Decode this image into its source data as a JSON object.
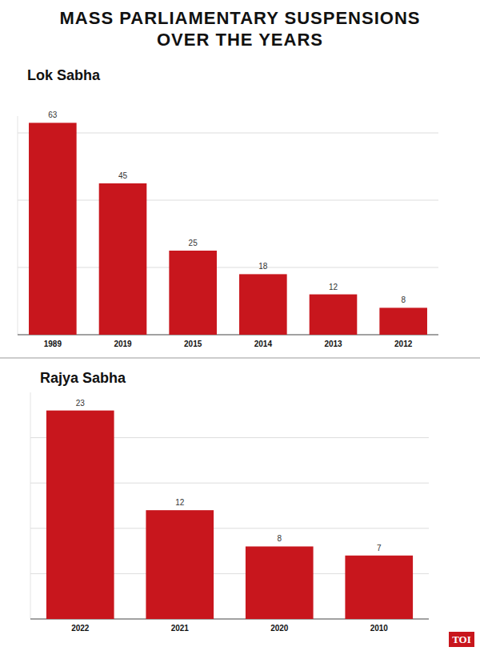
{
  "title": "MASS PARLIAMENTARY SUSPENSIONS OVER THE YEARS",
  "logo": "TOI",
  "chart_data": [
    {
      "type": "bar",
      "title": "Lok Sabha",
      "categories": [
        "1989",
        "2019",
        "2015",
        "2014",
        "2013",
        "2012"
      ],
      "values": [
        63,
        45,
        25,
        18,
        12,
        8
      ],
      "color": "#c8161d",
      "ylim": [
        0,
        65
      ],
      "yticks": [
        0,
        20,
        40,
        60
      ],
      "grid": true,
      "data_labels": true,
      "tick_labels": "x"
    },
    {
      "type": "bar",
      "title": "Rajya Sabha",
      "categories": [
        "2022",
        "2021",
        "2020",
        "2010"
      ],
      "values": [
        23,
        12,
        8,
        7
      ],
      "color": "#c8161d",
      "ylim": [
        0,
        25
      ],
      "yticks": [
        0,
        5,
        10,
        15,
        20
      ],
      "grid": true,
      "data_labels": true,
      "tick_labels": "x"
    }
  ]
}
